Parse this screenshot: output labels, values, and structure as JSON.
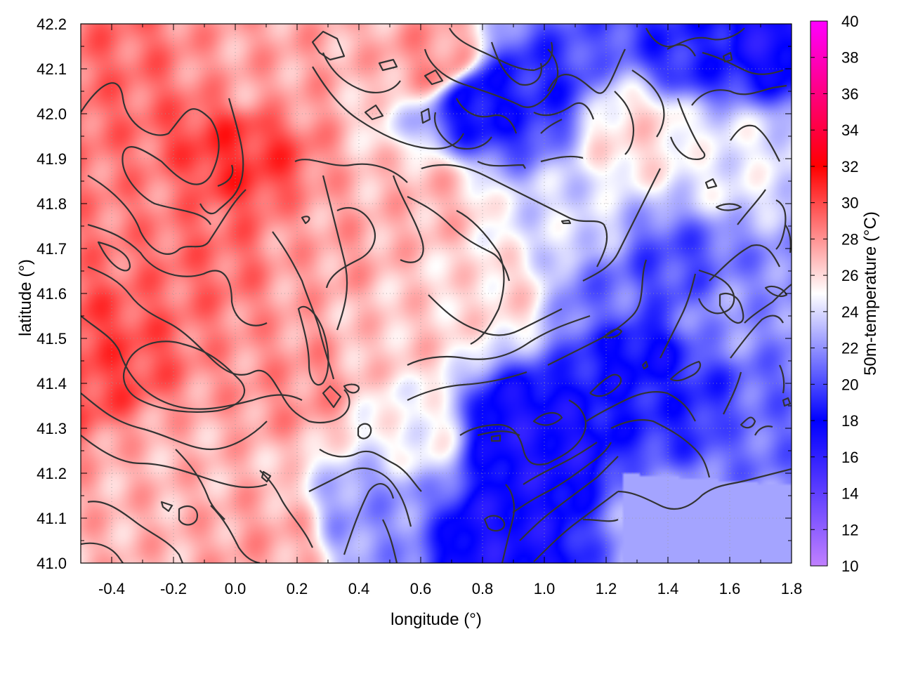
{
  "chart_data": {
    "type": "heatmap",
    "xlabel": "longitude (°)",
    "ylabel": "latitude (°)",
    "colorbar_label": "50m-temperature (°C)",
    "xlim": [
      -0.5,
      1.8
    ],
    "ylim": [
      41.0,
      42.2
    ],
    "xticks": [
      "-0.4",
      "-0.2",
      "0.0",
      "0.2",
      "0.4",
      "0.6",
      "0.8",
      "1.0",
      "1.2",
      "1.4",
      "1.6",
      "1.8"
    ],
    "xtick_values": [
      -0.4,
      -0.2,
      0.0,
      0.2,
      0.4,
      0.6,
      0.8,
      1.0,
      1.2,
      1.4,
      1.6,
      1.8
    ],
    "yticks": [
      "41.0",
      "41.1",
      "41.2",
      "41.3",
      "41.4",
      "41.5",
      "41.6",
      "41.7",
      "41.8",
      "41.9",
      "42.0",
      "42.1",
      "42.2"
    ],
    "ytick_values": [
      41.0,
      41.1,
      41.2,
      41.3,
      41.4,
      41.5,
      41.6,
      41.7,
      41.8,
      41.9,
      42.0,
      42.1,
      42.2
    ],
    "colorbar": {
      "range": [
        10,
        40
      ],
      "ticks": [
        "10",
        "12",
        "14",
        "16",
        "18",
        "20",
        "22",
        "24",
        "26",
        "28",
        "30",
        "32",
        "34",
        "36",
        "38",
        "40"
      ],
      "tick_values": [
        10,
        12,
        14,
        16,
        18,
        20,
        22,
        24,
        26,
        28,
        30,
        32,
        34,
        36,
        38,
        40
      ],
      "stops": [
        {
          "value": 10,
          "color": "#c080ff"
        },
        {
          "value": 18,
          "color": "#0000ff"
        },
        {
          "value": 25,
          "color": "#ffffff"
        },
        {
          "value": 32,
          "color": "#ff0000"
        },
        {
          "value": 40,
          "color": "#ff00ff"
        }
      ]
    },
    "grid": true,
    "contours": true,
    "field_samples": [
      {
        "lon": -0.45,
        "lat": 42.1,
        "t": 29
      },
      {
        "lon": -0.3,
        "lat": 41.8,
        "t": 28.5
      },
      {
        "lon": -0.45,
        "lat": 41.45,
        "t": 30
      },
      {
        "lon": -0.1,
        "lat": 41.7,
        "t": 29
      },
      {
        "lon": 0.0,
        "lat": 41.9,
        "t": 30.5
      },
      {
        "lon": 0.1,
        "lat": 42.1,
        "t": 27.5
      },
      {
        "lon": 0.3,
        "lat": 41.7,
        "t": 27.5
      },
      {
        "lon": 0.2,
        "lat": 41.4,
        "t": 28
      },
      {
        "lon": -0.2,
        "lat": 41.2,
        "t": 27
      },
      {
        "lon": 0.1,
        "lat": 41.05,
        "t": 27.5
      },
      {
        "lon": 0.6,
        "lat": 41.8,
        "t": 27
      },
      {
        "lon": 0.55,
        "lat": 41.5,
        "t": 26.5
      },
      {
        "lon": 0.45,
        "lat": 41.1,
        "t": 22
      },
      {
        "lon": 0.6,
        "lat": 41.3,
        "t": 25
      },
      {
        "lon": 0.65,
        "lat": 42.12,
        "t": 28
      },
      {
        "lon": 0.8,
        "lat": 42.03,
        "t": 18
      },
      {
        "lon": 0.95,
        "lat": 42.05,
        "t": 19
      },
      {
        "lon": 0.85,
        "lat": 41.6,
        "t": 26
      },
      {
        "lon": 0.9,
        "lat": 41.3,
        "t": 17
      },
      {
        "lon": 1.0,
        "lat": 41.25,
        "t": 17
      },
      {
        "lon": 0.85,
        "lat": 41.05,
        "t": 17
      },
      {
        "lon": 1.1,
        "lat": 41.75,
        "t": 24
      },
      {
        "lon": 1.3,
        "lat": 41.45,
        "t": 18
      },
      {
        "lon": 1.4,
        "lat": 41.65,
        "t": 20
      },
      {
        "lon": 1.45,
        "lat": 41.35,
        "t": 19
      },
      {
        "lon": 1.7,
        "lat": 41.3,
        "t": 21
      },
      {
        "lon": 1.6,
        "lat": 41.55,
        "t": 22
      },
      {
        "lon": 1.5,
        "lat": 42.15,
        "t": 19
      },
      {
        "lon": 1.7,
        "lat": 42.18,
        "t": 17
      },
      {
        "lon": 1.3,
        "lat": 41.95,
        "t": 26
      },
      {
        "lon": 1.6,
        "lat": 41.9,
        "t": 24.5
      },
      {
        "lon": 1.4,
        "lat": 41.1,
        "t": 22.5
      },
      {
        "lon": 1.7,
        "lat": 41.05,
        "t": 22.5
      },
      {
        "lon": 1.2,
        "lat": 41.6,
        "t": 21
      }
    ]
  }
}
